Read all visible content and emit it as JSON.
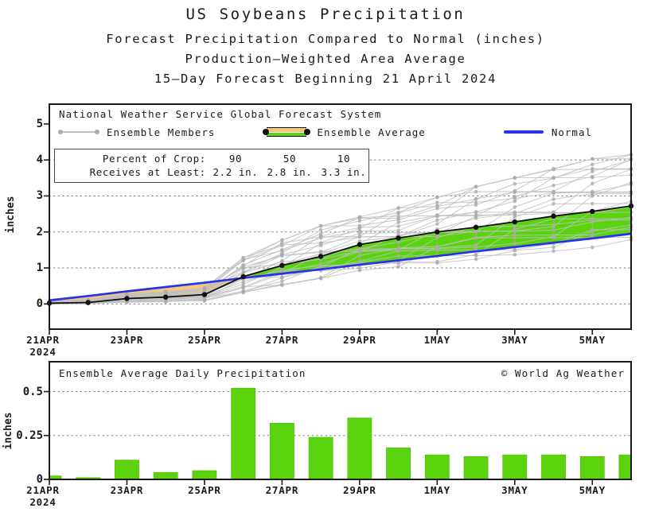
{
  "title": {
    "line1": "US Soybeans Precipitation",
    "line2": "Forecast Precipitation Compared to Normal (inches)",
    "line3": "Production–Weighted Area Average",
    "line4": "15–Day Forecast Beginning 21 April 2024"
  },
  "top_chart": {
    "legend": {
      "title": "National Weather Service Global Forecast System",
      "members_label": "Ensemble Members",
      "average_label": "Ensemble Average",
      "normal_label": "Normal"
    },
    "info_box": {
      "rows": [
        {
          "label": "Percent of Crop:",
          "values": [
            "90",
            "50",
            "10"
          ]
        },
        {
          "label": "Receives at Least:",
          "values": [
            "2.2 in.",
            "2.8 in.",
            "3.3 in."
          ]
        }
      ]
    }
  },
  "bottom_chart": {
    "title": "Ensemble Average Daily Precipitation",
    "watermark": "© World Ag Weather"
  },
  "colors": {
    "green": "#5bd40f",
    "orange": "#f3c87e",
    "blue": "#2832ec",
    "member_gray": "#bfbfbf",
    "member_dot_gray": "#ababab",
    "average_black": "#111111",
    "frame": "#1a1a1a",
    "grid": "#6a6a6a",
    "text": "#1a1a1a"
  },
  "chart_data": [
    {
      "type": "line",
      "title": "National Weather Service Global Forecast System",
      "x": [
        "21APR",
        "22APR",
        "23APR",
        "24APR",
        "25APR",
        "26APR",
        "27APR",
        "28APR",
        "29APR",
        "30APR",
        "1MAY",
        "2MAY",
        "3MAY",
        "4MAY",
        "5MAY",
        "6MAY"
      ],
      "xtick_indices": [
        0,
        2,
        4,
        6,
        8,
        10,
        12,
        14
      ],
      "xtick_labels": [
        "21APR",
        "23APR",
        "25APR",
        "27APR",
        "29APR",
        "1MAY",
        "3MAY",
        "5MAY"
      ],
      "xtick_year": "2024",
      "ylabel": "inches",
      "ylim": [
        -0.7,
        5.55
      ],
      "yticks": [
        0,
        1,
        2,
        3,
        4,
        5
      ],
      "ytick_labels": [
        "0",
        "1",
        "2",
        "3",
        "4",
        "5"
      ],
      "grid_yticks": [
        0,
        1,
        2,
        3,
        4
      ],
      "series": [
        {
          "name": "Ensemble Average",
          "color_key": "average_black",
          "values": [
            0.02,
            0.04,
            0.15,
            0.19,
            0.26,
            0.76,
            1.07,
            1.32,
            1.65,
            1.83,
            2.0,
            2.13,
            2.28,
            2.44,
            2.57,
            2.72
          ]
        },
        {
          "name": "Normal",
          "color_key": "blue",
          "values": [
            0.1,
            0.22,
            0.35,
            0.47,
            0.59,
            0.72,
            0.84,
            0.96,
            1.09,
            1.21,
            1.33,
            1.46,
            1.58,
            1.7,
            1.82,
            1.95
          ]
        }
      ],
      "members_envelope": {
        "count": 26,
        "min": [
          0.0,
          0.0,
          0.04,
          0.06,
          0.08,
          0.3,
          0.5,
          0.68,
          0.9,
          1.0,
          1.1,
          1.2,
          1.32,
          1.42,
          1.52,
          1.62
        ],
        "max": [
          0.08,
          0.12,
          0.28,
          0.34,
          0.45,
          1.3,
          1.8,
          2.2,
          2.45,
          2.7,
          3.0,
          3.3,
          3.55,
          3.8,
          4.08,
          4.2
        ]
      }
    },
    {
      "type": "bar",
      "title": "Ensemble Average Daily Precipitation",
      "categories": [
        "21APR",
        "22APR",
        "23APR",
        "24APR",
        "25APR",
        "26APR",
        "27APR",
        "28APR",
        "29APR",
        "30APR",
        "1MAY",
        "2MAY",
        "3MAY",
        "4MAY",
        "5MAY",
        "6MAY"
      ],
      "values": [
        0.02,
        0.01,
        0.11,
        0.04,
        0.05,
        0.52,
        0.32,
        0.24,
        0.35,
        0.18,
        0.14,
        0.13,
        0.14,
        0.14,
        0.13,
        0.14
      ],
      "xtick_indices": [
        0,
        2,
        4,
        6,
        8,
        10,
        12,
        14
      ],
      "xtick_labels": [
        "21APR",
        "23APR",
        "25APR",
        "27APR",
        "29APR",
        "1MAY",
        "3MAY",
        "5MAY"
      ],
      "xtick_year": "2024",
      "ylabel": "inches",
      "ylim": [
        0,
        0.67
      ],
      "yticks": [
        0,
        0.25,
        0.5
      ],
      "ytick_labels": [
        "0",
        "0.25",
        "0.5"
      ],
      "grid_yticks": [
        0.25,
        0.5
      ]
    }
  ]
}
